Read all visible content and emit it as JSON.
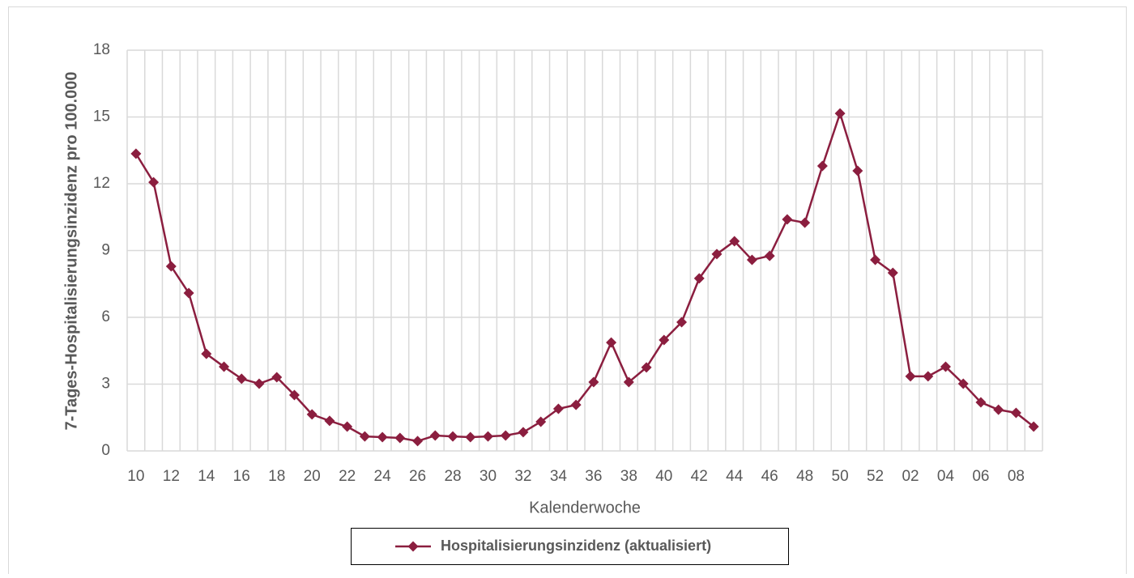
{
  "chart_data": {
    "type": "line",
    "x_label": "Kalenderwoche",
    "y_label": "7-Tages-Hospitalisierungsinzidenz pro 100.000",
    "categories": [
      "10",
      null,
      "12",
      null,
      "14",
      null,
      "16",
      null,
      "18",
      null,
      "20",
      null,
      "22",
      null,
      "24",
      null,
      "26",
      null,
      "28",
      null,
      "30",
      null,
      "32",
      null,
      "34",
      null,
      "36",
      null,
      "38",
      null,
      "40",
      null,
      "42",
      null,
      "44",
      null,
      "46",
      null,
      "48",
      null,
      "50",
      null,
      "52",
      null,
      "02",
      null,
      "04",
      null,
      "06",
      null,
      "08",
      null
    ],
    "series": [
      {
        "name": "Hospitalisierungsinzidenz (aktualisiert)",
        "color": "#8b1e3f",
        "values": [
          13.35,
          12.07,
          8.29,
          7.09,
          4.36,
          3.78,
          3.24,
          3.02,
          3.31,
          2.51,
          1.64,
          1.35,
          1.09,
          0.65,
          0.62,
          0.58,
          0.44,
          0.69,
          0.65,
          0.62,
          0.65,
          0.69,
          0.84,
          1.31,
          1.89,
          2.07,
          3.09,
          4.87,
          3.09,
          3.75,
          4.98,
          5.78,
          7.75,
          8.84,
          9.42,
          8.58,
          8.76,
          10.4,
          10.25,
          12.8,
          15.16,
          12.58,
          8.58,
          8.0,
          3.35,
          3.35,
          3.78,
          3.02,
          2.18,
          1.85,
          1.71,
          1.09
        ]
      }
    ],
    "ylim": [
      0,
      18
    ],
    "yticks": [
      0,
      3,
      6,
      9,
      12,
      15,
      18
    ],
    "grid": true
  }
}
